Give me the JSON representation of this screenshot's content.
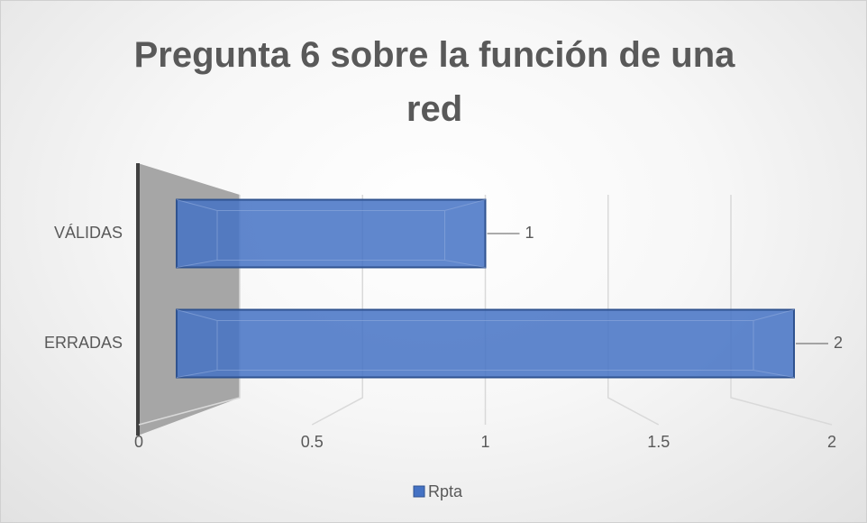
{
  "chart_data": {
    "type": "bar",
    "orientation": "horizontal",
    "title": "Pregunta 6 sobre la función de una red",
    "categories": [
      "VÁLIDAS",
      "ERRADAS"
    ],
    "series": [
      {
        "name": "Rpta",
        "color": "#4472c4",
        "values": [
          1,
          2
        ]
      }
    ],
    "xlim": [
      0,
      2
    ],
    "xticks": [
      0,
      0.5,
      1,
      1.5,
      2
    ],
    "grid": true,
    "legend": "bottom",
    "data_labels": true
  }
}
